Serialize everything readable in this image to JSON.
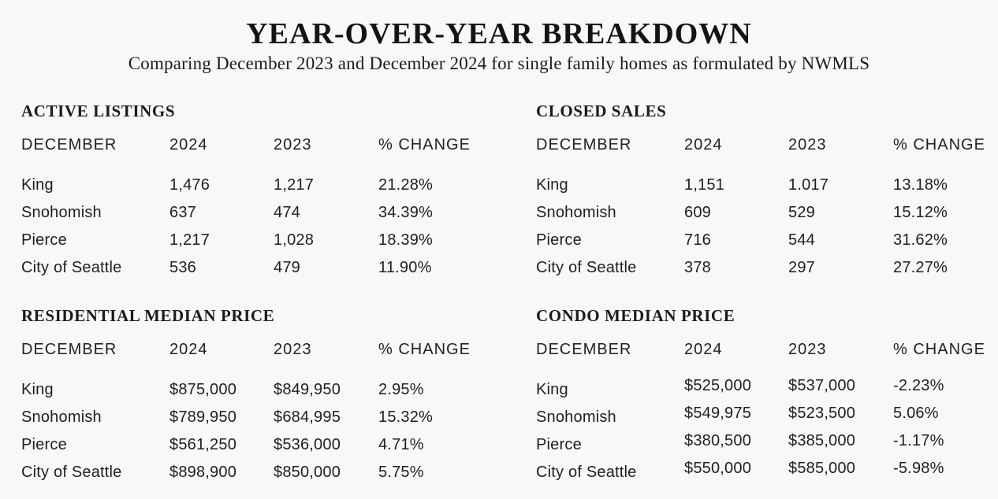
{
  "header": {
    "title": "YEAR-OVER-YEAR BREAKDOWN",
    "subtitle": "Comparing December 2023 and December 2024 for single family homes as formulated by NWMLS"
  },
  "colors": {
    "background": "#f8f8f7",
    "text": "#1f1f1f"
  },
  "tables": [
    {
      "title": "ACTIVE LISTINGS",
      "columns": [
        "DECEMBER",
        "2024",
        "2023",
        "% CHANGE"
      ],
      "rows": [
        {
          "label": "King",
          "v2024": "1,476",
          "v2023": "1,217",
          "change": "21.28%"
        },
        {
          "label": "Snohomish",
          "v2024": "637",
          "v2023": "474",
          "change": "34.39%"
        },
        {
          "label": "Pierce",
          "v2024": "1,217",
          "v2023": "1,028",
          "change": "18.39%"
        },
        {
          "label": "City of Seattle",
          "v2024": "536",
          "v2023": "479",
          "change": "11.90%"
        }
      ]
    },
    {
      "title": "CLOSED SALES",
      "columns": [
        "DECEMBER",
        "2024",
        "2023",
        "% CHANGE"
      ],
      "rows": [
        {
          "label": "King",
          "v2024": "1,151",
          "v2023": "1.017",
          "change": "13.18%"
        },
        {
          "label": "Snohomish",
          "v2024": "609",
          "v2023": "529",
          "change": "15.12%"
        },
        {
          "label": "Pierce",
          "v2024": "716",
          "v2023": "544",
          "change": "31.62%"
        },
        {
          "label": "City of Seattle",
          "v2024": "378",
          "v2023": "297",
          "change": "27.27%"
        }
      ]
    },
    {
      "title": "RESIDENTIAL MEDIAN PRICE",
      "columns": [
        "DECEMBER",
        "2024",
        "2023",
        "% CHANGE"
      ],
      "rows": [
        {
          "label": "King",
          "v2024": "$875,000",
          "v2023": "$849,950",
          "change": "2.95%"
        },
        {
          "label": "Snohomish",
          "v2024": "$789,950",
          "v2023": "$684,995",
          "change": "15.32%"
        },
        {
          "label": "Pierce",
          "v2024": "$561,250",
          "v2023": "$536,000",
          "change": "4.71%"
        },
        {
          "label": "City of Seattle",
          "v2024": "$898,900",
          "v2023": "$850,000",
          "change": "5.75%"
        }
      ]
    },
    {
      "title": "CONDO MEDIAN PRICE",
      "columns": [
        "DECEMBER",
        "2024",
        "2023",
        "% CHANGE"
      ],
      "rows": [
        {
          "label": "King",
          "v2024": "$525,000",
          "v2023": "$537,000",
          "change": "-2.23%"
        },
        {
          "label": "Snohomish",
          "v2024": "$549,975",
          "v2023": "$523,500",
          "change": "5.06%"
        },
        {
          "label": "Pierce",
          "v2024": "$380,500",
          "v2023": "$385,000",
          "change": "-1.17%"
        },
        {
          "label": "City of Seattle",
          "v2024": "$550,000",
          "v2023": "$585,000",
          "change": "-5.98%"
        }
      ]
    }
  ]
}
